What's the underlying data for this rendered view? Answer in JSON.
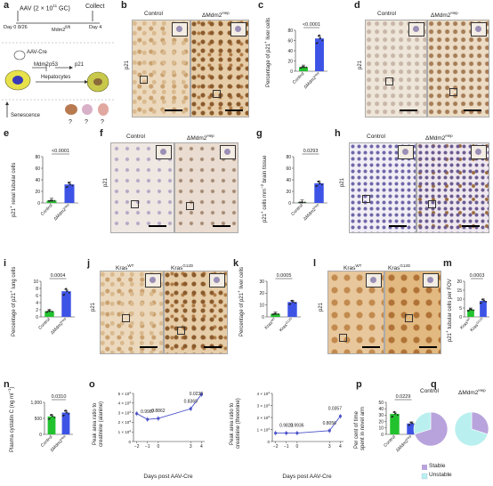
{
  "panels": {
    "a": {
      "label": "a",
      "aav": "AAV (2 × 10",
      "aav_exp": "11",
      "aav_unit": " GC)",
      "collect": "Collect",
      "day0": "Day 0",
      "day4": "Day 4",
      "ind": "8/26",
      "mdm2": "Mdm2",
      "mdm2_sup": "fl/fl",
      "aav_cre": "AAV-Cre",
      "mdm2_gene": "Mdm2",
      "p53": "p53",
      "p21": "p21",
      "hepatocytes": "Hepatocytes",
      "senescence": "Senescence",
      "q1": "?",
      "q2": "?",
      "q3": "?"
    },
    "b": {
      "label": "b",
      "control": "Control",
      "ko": "ΔMdm2",
      "ko_sup": "Hep",
      "ylab": "p21"
    },
    "c": {
      "label": "c",
      "p": "<0.0001",
      "ylab": "Percentage of p21",
      "ylab2": " liver cells",
      "ticks": [
        "0",
        "20",
        "40",
        "60",
        "80"
      ],
      "cats": [
        "Control",
        "ΔMdm2"
      ]
    },
    "d": {
      "label": "d",
      "control": "Control",
      "ko": "ΔMdm2",
      "ko_sup": "Hep",
      "ylab": "p21"
    },
    "e": {
      "label": "e",
      "p": "<0.0001",
      "ylab": "p21",
      "ylab2": " renal tubular cells",
      "ticks": [
        "0",
        "20",
        "40",
        "60",
        "80"
      ],
      "cats": [
        "Control",
        "ΔMdm2"
      ]
    },
    "f": {
      "label": "f",
      "control": "Control",
      "ko": "ΔMdm2",
      "ko_sup": "Hep",
      "ylab": "p21"
    },
    "g": {
      "label": "g",
      "p": "0.0293",
      "ylab": "p21",
      "ylab2": " cells mm",
      "ylab3": " brain tissue",
      "ticks": [
        "0",
        "20",
        "40",
        "60",
        "80"
      ],
      "cats": [
        "Control",
        "ΔMdm2"
      ]
    },
    "h": {
      "label": "h",
      "control": "Control",
      "ko": "ΔMdm2",
      "ko_sup": "Hep",
      "ylab": "p21"
    },
    "i": {
      "label": "i",
      "p": "0.0004",
      "ylab": "Percentage of p21",
      "ylab2": " lung cells",
      "ticks": [
        "0",
        "2",
        "4",
        "6",
        "8",
        "10"
      ],
      "cats": [
        "Control",
        "ΔMdm2"
      ]
    },
    "j": {
      "label": "j",
      "wt": "Kras",
      "wt_sup": "WT",
      "mut": "Kras",
      "mut_sup": "G12D",
      "ylab": "p21"
    },
    "k": {
      "label": "k",
      "p": "0.0005",
      "ylab": "Percentage of p21",
      "ylab2": " liver cells",
      "ticks": [
        "0",
        "10",
        "20",
        "30"
      ],
      "cats": [
        "Kras",
        "Kras"
      ],
      "cat_sups": [
        "WT",
        "G12D"
      ]
    },
    "l": {
      "label": "l",
      "wt": "Kras",
      "wt_sup": "WT",
      "mut": "Kras",
      "mut_sup": "G12D",
      "ylab": "p21"
    },
    "m": {
      "label": "m",
      "p": "0.0003",
      "ylab": "p21",
      "ylab2": " tubular cells per FOV",
      "ticks": [
        "0",
        "5",
        "10",
        "15",
        "20"
      ],
      "cats": [
        "Kras",
        "Kras"
      ],
      "cat_sups": [
        "WT",
        "G12D"
      ]
    },
    "n": {
      "label": "n",
      "p": "0.0310",
      "ylab": "Plasma cystatin C (ng ml",
      "ylab2": ")",
      "ticks": [
        "0",
        "500",
        "1,000"
      ],
      "cats": [
        "Control",
        "ΔMdm2"
      ]
    },
    "o": {
      "label": "o",
      "ylab_left": "Peak area ratio to",
      "ylab_left2": "creatinine (alanine)",
      "ylab_right": "Peak area ratio to",
      "ylab_right2": "creatinine (threonine)",
      "xlab": "Days post AAV-Cre",
      "left_ticks": [
        "0",
        "1 × 10",
        "2 × 10",
        "3 × 10",
        "4 × 10",
        "5 × 10"
      ],
      "right_ticks": [
        "0",
        "1 × 10",
        "2 × 10",
        "3 × 10",
        "4 × 10"
      ],
      "tick_exp": "4",
      "xticks": [
        "−2",
        "−1",
        "0",
        "3",
        "4"
      ],
      "left_p": [
        "0.9987",
        "0.8862",
        "0.8369",
        "0.0230"
      ],
      "right_p": [
        "0.9823",
        "0.9936",
        "0.8056",
        "0.0357"
      ]
    },
    "p": {
      "label": "p",
      "p": "0.0229",
      "ylab": "Per cent of time",
      "ylab2": "spent in novel arm",
      "ticks": [
        "0",
        "10",
        "20",
        "30",
        "40",
        "50"
      ],
      "cats": [
        "Control",
        "ΔMdm2"
      ]
    },
    "q": {
      "label": "q",
      "control": "Control",
      "ko": "ΔMdm2",
      "ko_sup": "Hep",
      "legend_stable": "Stable",
      "legend_unstable": "Unstable"
    }
  },
  "colors": {
    "control": "#22c22e",
    "ko": "#3d53e6",
    "stable": "#b8a3dc",
    "unstable": "#b9f0ef",
    "line": "#4a52c9"
  },
  "chart_data": [
    {
      "type": "bar",
      "panel": "c",
      "categories": [
        "Control",
        "ΔMdm2Hep"
      ],
      "values": [
        8,
        64
      ],
      "ylim": [
        0,
        80
      ],
      "ylabel": "Percentage of p21+ liver cells"
    },
    {
      "type": "bar",
      "panel": "e",
      "categories": [
        "Control",
        "ΔMdm2Hep"
      ],
      "values": [
        4,
        32
      ],
      "ylim": [
        0,
        80
      ],
      "ylabel": "p21+ renal tubular cells"
    },
    {
      "type": "bar",
      "panel": "g",
      "categories": [
        "Control",
        "ΔMdm2Hep"
      ],
      "values": [
        1,
        34
      ],
      "ylim": [
        0,
        80
      ],
      "ylabel": "p21+ cells mm−2 brain tissue"
    },
    {
      "type": "bar",
      "panel": "i",
      "categories": [
        "Control",
        "ΔMdm2Hep"
      ],
      "values": [
        1.6,
        7.2
      ],
      "ylim": [
        0,
        10
      ],
      "ylabel": "Percentage of p21+ lung cells"
    },
    {
      "type": "bar",
      "panel": "k",
      "categories": [
        "KrasWT",
        "KrasG12D"
      ],
      "values": [
        2.5,
        12.5
      ],
      "ylim": [
        0,
        30
      ],
      "ylabel": "Percentage of p21+ liver cells"
    },
    {
      "type": "bar",
      "panel": "m",
      "categories": [
        "KrasWT",
        "KrasG12D"
      ],
      "values": [
        4,
        9
      ],
      "ylim": [
        0,
        20
      ],
      "ylabel": "p21+ tubular cells per FOV"
    },
    {
      "type": "bar",
      "panel": "n",
      "categories": [
        "Control",
        "ΔMdm2Hep"
      ],
      "values": [
        560,
        680
      ],
      "ylim": [
        0,
        1000
      ],
      "ylabel": "Plasma cystatin C (ng ml−1)"
    },
    {
      "type": "line",
      "panel": "o-left",
      "x": [
        -2,
        -1,
        0,
        3,
        4
      ],
      "values": [
        29000,
        23000,
        24000,
        34000,
        49000
      ],
      "ylim": [
        0,
        50000
      ],
      "xlabel": "Days post AAV-Cre"
    },
    {
      "type": "line",
      "panel": "o-right",
      "x": [
        -2,
        -1,
        0,
        3,
        4
      ],
      "values": [
        7000,
        7000,
        7000,
        9000,
        21000
      ],
      "ylim": [
        0,
        40000
      ],
      "xlabel": "Days post AAV-Cre"
    },
    {
      "type": "bar",
      "panel": "p",
      "categories": [
        "Control",
        "ΔMdm2Hep"
      ],
      "values": [
        32,
        17
      ],
      "ylim": [
        0,
        50
      ],
      "ylabel": "Per cent of time spent in novel arm"
    },
    {
      "type": "pie",
      "panel": "q-control",
      "categories": [
        "Stable",
        "Unstable"
      ],
      "values": [
        70,
        30
      ]
    },
    {
      "type": "pie",
      "panel": "q-ko",
      "categories": [
        "Stable",
        "Unstable"
      ],
      "values": [
        30,
        70
      ]
    }
  ]
}
